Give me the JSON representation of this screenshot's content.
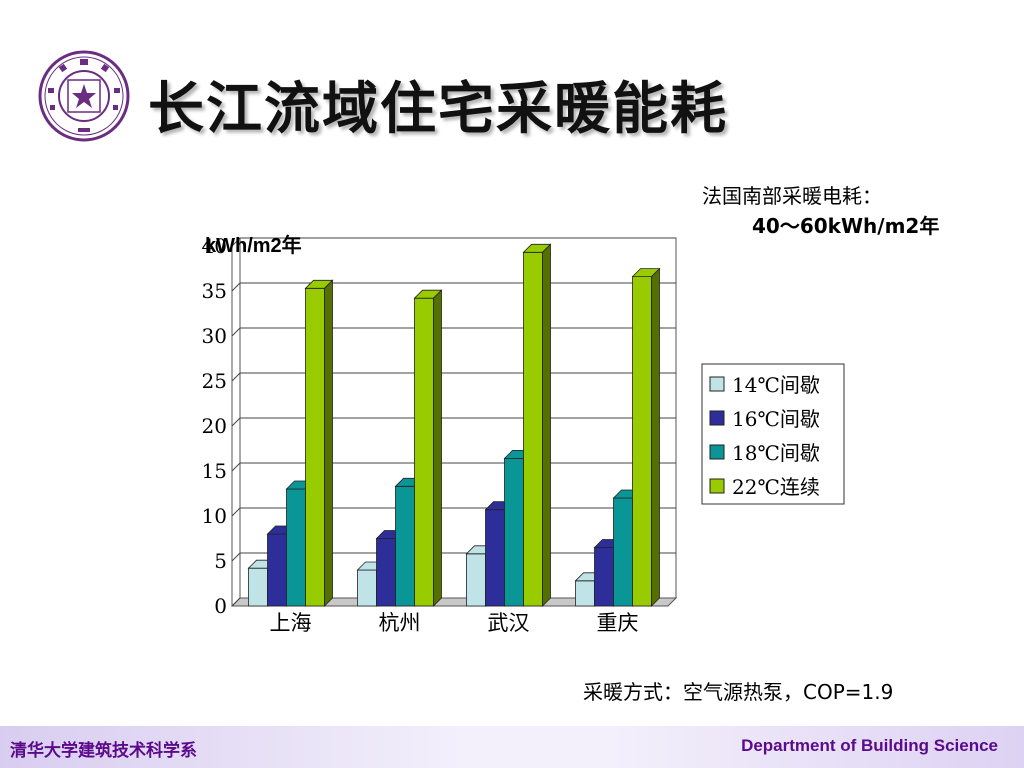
{
  "header": {
    "title": "长江流域住宅采暖能耗"
  },
  "notes": {
    "top_line1": "法国南部采暖电耗：",
    "top_line2": "40～60kWh/m2年",
    "bottom": "采暖方式：空气源热泵，COP=1.9"
  },
  "footer": {
    "left": "清华大学建筑技术科学系",
    "right": "Department of Building Science"
  },
  "colors": {
    "brand_purple": "#5a0a8a",
    "series": [
      "#bfe3e6",
      "#2e2e9a",
      "#0a9696",
      "#99cc00"
    ]
  },
  "chart_data": {
    "type": "bar",
    "style": "3d-clustered",
    "ylabel": "kWh/m2年",
    "ylim": [
      0,
      40
    ],
    "yticks": [
      0,
      5,
      10,
      15,
      20,
      25,
      30,
      35,
      40
    ],
    "grid": true,
    "legend_position": "right",
    "categories": [
      "上海",
      "杭州",
      "武汉",
      "重庆"
    ],
    "series": [
      {
        "name": "14℃间歇",
        "values": [
          4.2,
          4.0,
          5.8,
          2.8
        ]
      },
      {
        "name": "16℃间歇",
        "values": [
          8.0,
          7.5,
          10.7,
          6.5
        ]
      },
      {
        "name": "18℃间歇",
        "values": [
          13.0,
          13.3,
          16.4,
          12.0
        ]
      },
      {
        "name": "22℃连续",
        "values": [
          35.3,
          34.2,
          39.3,
          36.6
        ]
      }
    ]
  }
}
